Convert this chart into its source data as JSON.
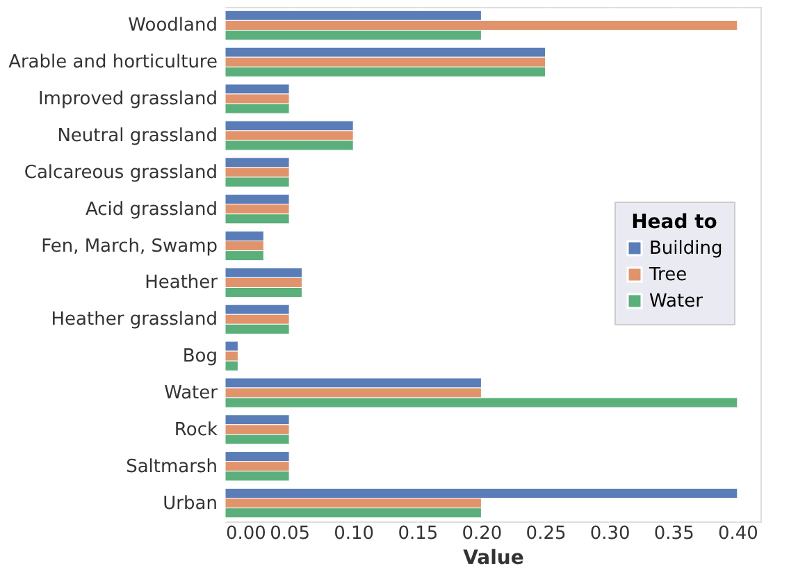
{
  "chart_data": {
    "type": "bar",
    "orientation": "horizontal",
    "xlabel": "Value",
    "legend_title": "Head to",
    "legend": "right",
    "grid": "x",
    "categories": [
      "Woodland",
      "Arable and horticulture",
      "Improved grassland",
      "Neutral grassland",
      "Calcareous grassland",
      "Acid grassland",
      "Fen, March, Swamp",
      "Heather",
      "Heather grassland",
      "Bog",
      "Water",
      "Rock",
      "Saltmarsh",
      "Urban"
    ],
    "series": [
      {
        "name": "Building",
        "color": "#5a7db8",
        "values": [
          0.2,
          0.25,
          0.05,
          0.1,
          0.05,
          0.05,
          0.03,
          0.06,
          0.05,
          0.01,
          0.2,
          0.05,
          0.05,
          0.4
        ]
      },
      {
        "name": "Tree",
        "color": "#e1946c",
        "values": [
          0.4,
          0.25,
          0.05,
          0.1,
          0.05,
          0.05,
          0.03,
          0.06,
          0.05,
          0.01,
          0.2,
          0.05,
          0.05,
          0.2
        ]
      },
      {
        "name": "Water",
        "color": "#5aaf7a",
        "values": [
          0.2,
          0.25,
          0.05,
          0.1,
          0.05,
          0.05,
          0.03,
          0.06,
          0.05,
          0.01,
          0.4,
          0.05,
          0.05,
          0.2
        ]
      }
    ],
    "xlim": [
      0,
      0.418
    ],
    "xticks": [
      {
        "value": 0,
        "label": "0.00"
      },
      {
        "value": 0.05,
        "label": "0.05"
      },
      {
        "value": 0.1,
        "label": "0.10"
      },
      {
        "value": 0.15,
        "label": "0.15"
      },
      {
        "value": 0.2,
        "label": "0.20"
      },
      {
        "value": 0.25,
        "label": "0.25"
      },
      {
        "value": 0.3,
        "label": "0.30"
      },
      {
        "value": 0.35,
        "label": "0.35"
      },
      {
        "value": 0.4,
        "label": "0.40"
      }
    ]
  }
}
